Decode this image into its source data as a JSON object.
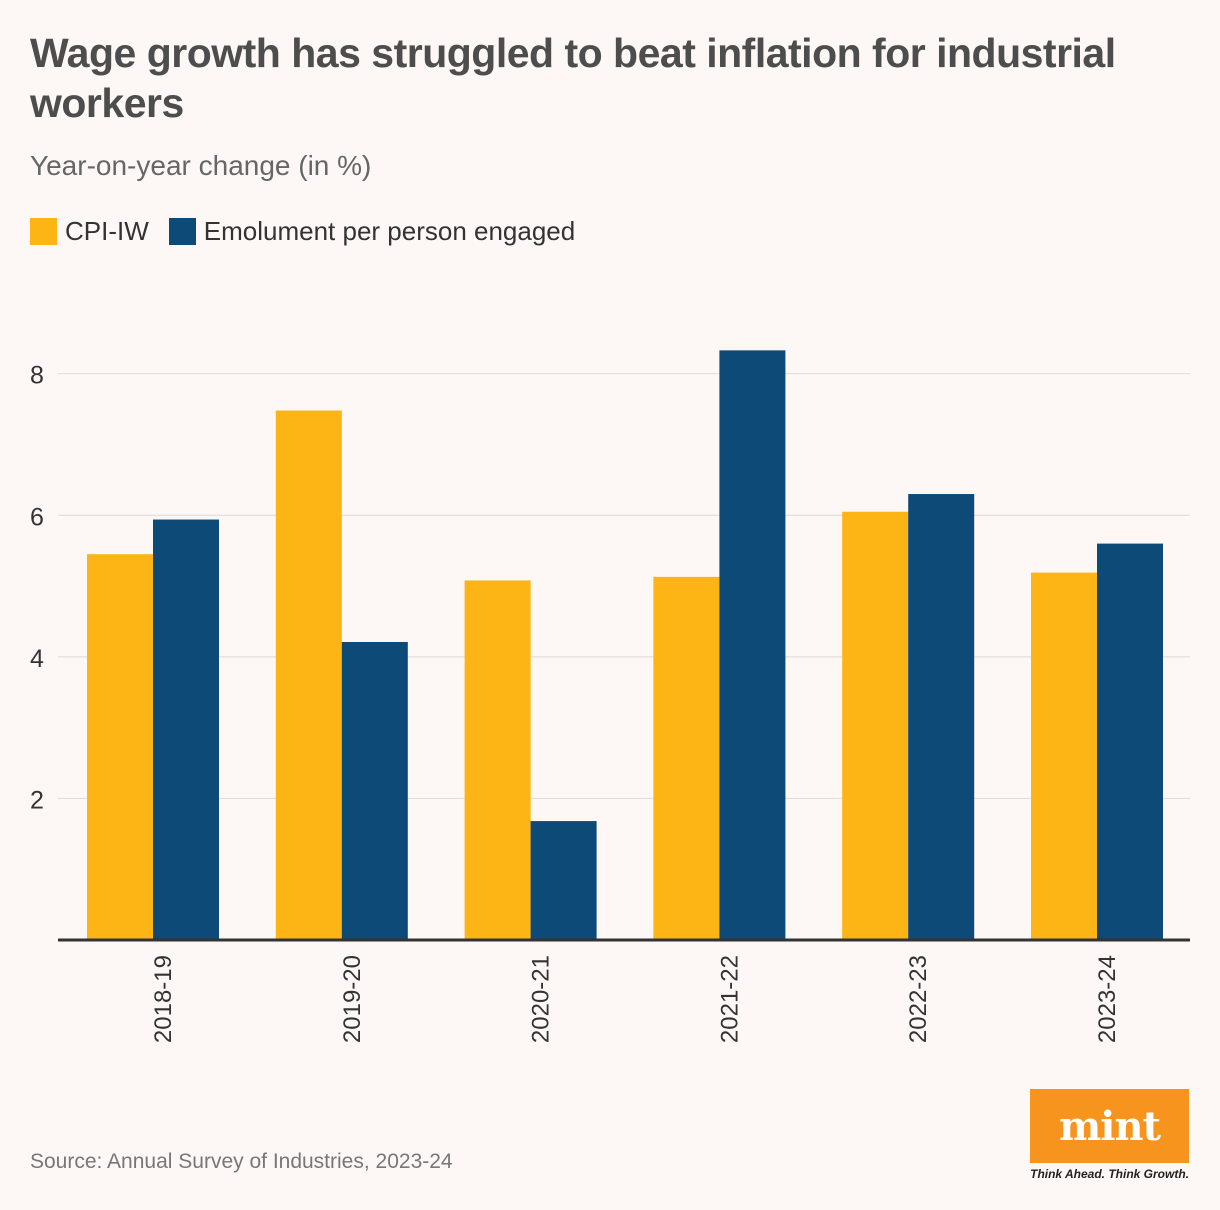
{
  "header": {
    "title": "Wage growth has struggled to beat inflation for industrial workers",
    "subtitle": "Year-on-year change (in %)"
  },
  "legend": [
    {
      "label": "CPI-IW",
      "color": "#fdb515"
    },
    {
      "label": "Emolument per person engaged",
      "color": "#0d4a78"
    }
  ],
  "chart_data": {
    "type": "bar",
    "title": "Wage growth has struggled to beat inflation for industrial workers",
    "subtitle": "Year-on-year change (in %)",
    "xlabel": "",
    "ylabel": "Year-on-year change (in %)",
    "categories": [
      "2018-19",
      "2019-20",
      "2020-21",
      "2021-22",
      "2022-23",
      "2023-24"
    ],
    "series": [
      {
        "name": "CPI-IW",
        "color": "#fdb515",
        "values": [
          5.45,
          7.48,
          5.08,
          5.13,
          6.05,
          5.19
        ]
      },
      {
        "name": "Emolument per person engaged",
        "color": "#0d4a78",
        "values": [
          5.94,
          4.21,
          1.68,
          8.33,
          6.3,
          5.6
        ]
      }
    ],
    "ylim": [
      0,
      8.9
    ],
    "yticks": [
      2,
      4,
      6,
      8
    ],
    "grid": true,
    "legend_position": "top-left"
  },
  "footer": {
    "source": "Source: Annual Survey of Industries, 2023-24",
    "logo_text": "mint",
    "tagline": "Think Ahead. Think Growth."
  }
}
